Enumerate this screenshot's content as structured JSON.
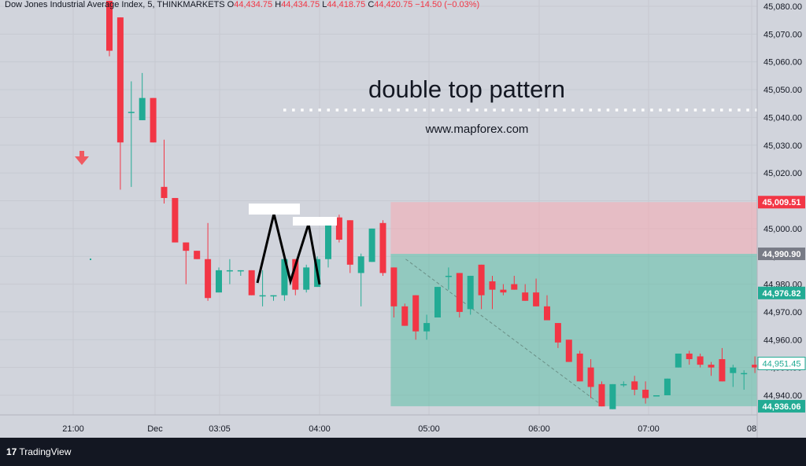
{
  "header": {
    "instrument": "Dow Jones Industrial Average Index, 5, THINKMARKETS",
    "o_label": "O",
    "o": "44,434.75",
    "h_label": "H",
    "h": "44,434.75",
    "l_label": "L",
    "l": "44,418.75",
    "c_label": "C",
    "c": "44,420.75",
    "change": "−14.50 (−0.03%)"
  },
  "annotation": {
    "title": "double top pattern",
    "url": "www.mapforex.com"
  },
  "footer": {
    "brand": "TradingView"
  },
  "colors": {
    "up": "#22ab94",
    "down": "#f23645",
    "bg": "#d1d4dc",
    "stop_zone": "#f7a9b3",
    "target_zone": "#5fbfa8"
  },
  "chart_data": {
    "type": "candlestick",
    "x_tick_labels": [
      "21:00",
      "Dec",
      "03:05",
      "04:00",
      "05:00",
      "06:00",
      "07:00",
      "08"
    ],
    "y_tick_labels": [
      "45,080.00",
      "45,070.00",
      "45,060.00",
      "45,050.00",
      "45,040.00",
      "45,030.00",
      "45,020.00",
      "45,010.00",
      "45,000.00",
      "44,990.00",
      "44,980.00",
      "44,970.00",
      "44,960.00",
      "44,950.00",
      "44,940.00"
    ],
    "ylim": [
      44932,
      45082
    ],
    "price_labels": [
      {
        "value": 45009.51,
        "text": "45,009.51",
        "color": "#f23645"
      },
      {
        "value": 44990.9,
        "text": "44,990.90",
        "color": "#787b86"
      },
      {
        "value": 44976.82,
        "text": "44,976.82",
        "color": "#22ab94"
      },
      {
        "value": 44951.45,
        "text": "44,951.45",
        "color": "outline"
      },
      {
        "value": 44936.06,
        "text": "44,936.06",
        "color": "#22ab94"
      }
    ],
    "candles": [
      [
        45082,
        45082,
        45062,
        45064
      ],
      [
        45076,
        45076,
        45014,
        45031
      ],
      [
        45042,
        45053,
        45015,
        45042
      ],
      [
        45039,
        45056,
        45039,
        45047
      ],
      [
        45047,
        45047,
        45031,
        45031
      ],
      [
        45015,
        45032,
        45009,
        45011
      ],
      [
        45011,
        45011,
        44995,
        44995
      ],
      [
        44995,
        44995,
        44980,
        44992
      ],
      [
        44992,
        44992,
        44989,
        44989
      ],
      [
        44989,
        45002,
        44974,
        44975
      ],
      [
        44977,
        44986,
        44977,
        44985
      ],
      [
        44985,
        44989,
        44980,
        44985
      ],
      [
        44985,
        44985,
        44983,
        44985
      ],
      [
        44985,
        44985,
        44976,
        44976
      ],
      [
        44976,
        44985,
        44972,
        44976
      ],
      [
        44976,
        44976,
        44974,
        44976
      ],
      [
        44976,
        44990,
        44974,
        44989
      ],
      [
        44989,
        44989,
        44976,
        44978
      ],
      [
        44978,
        44987,
        44977,
        44986
      ],
      [
        44979,
        44990,
        44979,
        44989
      ],
      [
        44989,
        45003,
        44986,
        45003
      ],
      [
        45004,
        45005,
        44995,
        44996
      ],
      [
        45003,
        45003,
        44984,
        44987
      ],
      [
        44984,
        44991,
        44972,
        44990
      ],
      [
        44988,
        45000,
        44988,
        45000
      ],
      [
        45002,
        45003,
        44983,
        44984
      ],
      [
        44986,
        44986,
        44968,
        44972
      ],
      [
        44972,
        44973,
        44965,
        44965
      ],
      [
        44976,
        44976,
        44960,
        44963
      ],
      [
        44963,
        44969,
        44960,
        44966
      ],
      [
        44968,
        44979,
        44968,
        44979
      ],
      [
        44983,
        44986,
        44978,
        44983
      ],
      [
        44984,
        44984,
        44968,
        44970
      ],
      [
        44971,
        44983,
        44969,
        44983
      ],
      [
        44987,
        44987,
        44971,
        44976
      ],
      [
        44981,
        44983,
        44971,
        44978
      ],
      [
        44978,
        44980,
        44976,
        44977
      ],
      [
        44980,
        44983,
        44978,
        44978
      ],
      [
        44977,
        44980,
        44974,
        44974
      ],
      [
        44977,
        44982,
        44972,
        44972
      ],
      [
        44972,
        44976,
        44967,
        44967
      ],
      [
        44966,
        44966,
        44957,
        44959
      ],
      [
        44960,
        44960,
        44952,
        44952
      ],
      [
        44955,
        44956,
        44945,
        44945
      ],
      [
        44950,
        44953,
        44939,
        44943
      ],
      [
        44944,
        44945,
        44936,
        44936
      ],
      [
        44935,
        44944,
        44935,
        44944
      ],
      [
        44944,
        44945,
        44943,
        44944
      ],
      [
        44945,
        44947,
        44940,
        44942
      ],
      [
        44942,
        44945,
        44937,
        44939
      ],
      [
        44940,
        44940,
        44940,
        44940
      ],
      [
        44940,
        44946,
        44940,
        44946
      ],
      [
        44950,
        44955,
        44950,
        44955
      ],
      [
        44955,
        44956,
        44951,
        44953
      ],
      [
        44954,
        44955,
        44950,
        44951
      ],
      [
        44951,
        44952,
        44947,
        44950
      ],
      [
        44953,
        44957,
        44945,
        44945
      ],
      [
        44948,
        44951,
        44943,
        44950
      ],
      [
        44948,
        44949,
        44942,
        44948
      ],
      [
        44951,
        44954,
        44948,
        44950
      ],
      [
        44952,
        44954,
        44950,
        44954
      ],
      [
        44951,
        44956,
        44951,
        44955
      ],
      [
        44955,
        44957,
        44951,
        44955
      ],
      [
        44954,
        44955,
        44954,
        44955
      ],
      [
        44954,
        44954,
        44945,
        44945
      ],
      [
        44945,
        44945,
        44931,
        44932
      ],
      [
        44933,
        44933,
        44931,
        44933
      ],
      [
        44933,
        44944,
        44933,
        44944
      ],
      [
        44944,
        44945,
        44933,
        44933
      ],
      [
        44934,
        44935,
        44932,
        44932
      ],
      [
        44932,
        44932,
        44932,
        44932
      ],
      [
        44932,
        44932,
        44932,
        44932
      ],
      [
        44932,
        44944,
        44932,
        44944
      ]
    ],
    "stop_zone": {
      "from_bar": 26,
      "to_bar": 59,
      "top": 45009.51,
      "bottom": 44990.9
    },
    "target_zone": {
      "from_bar": 26,
      "to_bar": 59,
      "top": 44990.9,
      "bottom": 44936.06
    }
  }
}
